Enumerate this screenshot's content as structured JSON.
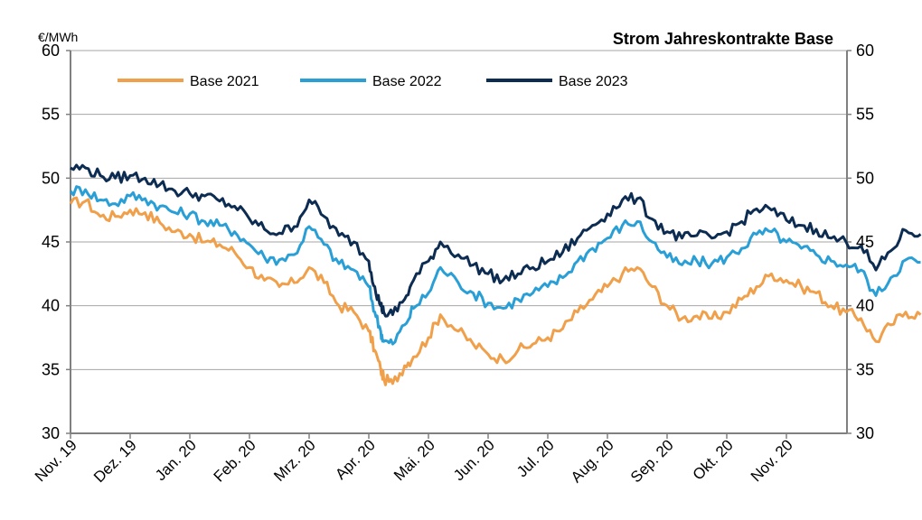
{
  "chart_data": {
    "type": "line",
    "title": "Strom Jahreskontrakte Base",
    "unit_label": "€/MWh",
    "ylim": [
      30,
      60
    ],
    "y_ticks": [
      "30",
      "35",
      "40",
      "45",
      "50",
      "55",
      "60"
    ],
    "x_tick_labels": [
      "Nov. 19",
      "Dez. 19",
      "Jan. 20",
      "Feb. 20",
      "Mrz. 20",
      "Apr. 20",
      "Mai. 20",
      "Jun. 20",
      "Jul. 20",
      "Aug. 20",
      "Sep. 20",
      "Okt. 20",
      "Nov. 20"
    ],
    "grid": "horizontal",
    "legend_position": "top-left",
    "x_description": "month index (0 = Nov. 19, 12 = Nov. 20)",
    "series": [
      {
        "name": "Base 2021",
        "color": "#f0a04b",
        "points": [
          [
            0,
            48.0
          ],
          [
            0.25,
            48.2
          ],
          [
            0.5,
            47.0
          ],
          [
            0.75,
            47.0
          ],
          [
            1.0,
            47.5
          ],
          [
            1.25,
            47.3
          ],
          [
            1.5,
            46.5
          ],
          [
            1.75,
            45.8
          ],
          [
            2.0,
            45.6
          ],
          [
            2.25,
            45.0
          ],
          [
            2.5,
            44.8
          ],
          [
            2.75,
            44.2
          ],
          [
            3.0,
            43.0
          ],
          [
            3.25,
            42.0
          ],
          [
            3.5,
            41.5
          ],
          [
            3.75,
            41.8
          ],
          [
            4.0,
            43.0
          ],
          [
            4.25,
            41.8
          ],
          [
            4.5,
            40.0
          ],
          [
            4.75,
            39.5
          ],
          [
            5.0,
            38.0
          ],
          [
            5.1,
            36.5
          ],
          [
            5.2,
            35.0
          ],
          [
            5.25,
            34.3
          ],
          [
            5.4,
            33.9
          ],
          [
            5.6,
            35.3
          ],
          [
            5.75,
            36.0
          ],
          [
            6.0,
            37.5
          ],
          [
            6.2,
            39.3
          ],
          [
            6.5,
            38.0
          ],
          [
            6.75,
            37.0
          ],
          [
            7.0,
            36.2
          ],
          [
            7.25,
            35.8
          ],
          [
            7.5,
            36.5
          ],
          [
            7.75,
            37.0
          ],
          [
            8.0,
            37.5
          ],
          [
            8.25,
            38.2
          ],
          [
            8.5,
            39.5
          ],
          [
            8.75,
            40.5
          ],
          [
            9.0,
            41.5
          ],
          [
            9.25,
            42.5
          ],
          [
            9.5,
            43.0
          ],
          [
            9.75,
            41.5
          ],
          [
            10.0,
            40.0
          ],
          [
            10.25,
            39.0
          ],
          [
            10.5,
            39.2
          ],
          [
            10.75,
            39.0
          ],
          [
            11.0,
            39.5
          ],
          [
            11.25,
            40.5
          ],
          [
            11.5,
            41.5
          ],
          [
            11.75,
            42.5
          ],
          [
            12.0,
            42.0
          ],
          [
            12.25,
            41.5
          ],
          [
            12.5,
            41.0
          ],
          [
            12.75,
            40.0
          ],
          [
            13.0,
            39.5
          ],
          [
            13.25,
            39.0
          ],
          [
            13.5,
            37.2
          ],
          [
            13.75,
            38.5
          ],
          [
            14.0,
            39.5
          ],
          [
            14.25,
            39.3
          ]
        ]
      },
      {
        "name": "Base 2022",
        "color": "#2a9fd6",
        "points": [
          [
            0,
            49.0
          ],
          [
            0.25,
            49.1
          ],
          [
            0.5,
            48.3
          ],
          [
            0.75,
            48.0
          ],
          [
            1.0,
            48.6
          ],
          [
            1.25,
            48.4
          ],
          [
            1.5,
            47.8
          ],
          [
            1.75,
            47.3
          ],
          [
            2.0,
            47.2
          ],
          [
            2.25,
            46.6
          ],
          [
            2.5,
            46.3
          ],
          [
            2.75,
            45.8
          ],
          [
            3.0,
            44.8
          ],
          [
            3.25,
            43.8
          ],
          [
            3.5,
            43.6
          ],
          [
            3.75,
            44.0
          ],
          [
            4.0,
            46.2
          ],
          [
            4.25,
            44.8
          ],
          [
            4.5,
            43.3
          ],
          [
            4.75,
            42.8
          ],
          [
            5.0,
            41.5
          ],
          [
            5.1,
            39.5
          ],
          [
            5.2,
            38.0
          ],
          [
            5.25,
            37.2
          ],
          [
            5.4,
            37.0
          ],
          [
            5.6,
            38.5
          ],
          [
            5.75,
            39.8
          ],
          [
            6.0,
            41.0
          ],
          [
            6.2,
            43.0
          ],
          [
            6.5,
            41.8
          ],
          [
            6.75,
            41.0
          ],
          [
            7.0,
            40.2
          ],
          [
            7.25,
            39.8
          ],
          [
            7.5,
            40.5
          ],
          [
            7.75,
            41.0
          ],
          [
            8.0,
            41.5
          ],
          [
            8.25,
            42.2
          ],
          [
            8.5,
            43.5
          ],
          [
            8.75,
            44.5
          ],
          [
            9.0,
            45.3
          ],
          [
            9.25,
            46.3
          ],
          [
            9.5,
            46.6
          ],
          [
            9.75,
            45.0
          ],
          [
            10.0,
            43.8
          ],
          [
            10.25,
            43.2
          ],
          [
            10.5,
            43.5
          ],
          [
            10.75,
            43.3
          ],
          [
            11.0,
            43.8
          ],
          [
            11.25,
            44.5
          ],
          [
            11.5,
            45.6
          ],
          [
            11.75,
            45.8
          ],
          [
            12.0,
            45.0
          ],
          [
            12.25,
            44.5
          ],
          [
            12.5,
            44.0
          ],
          [
            12.75,
            43.5
          ],
          [
            13.0,
            43.2
          ],
          [
            13.25,
            42.8
          ],
          [
            13.5,
            40.8
          ],
          [
            13.75,
            42.2
          ],
          [
            14.0,
            43.6
          ],
          [
            14.25,
            43.4
          ]
        ]
      },
      {
        "name": "Base 2023",
        "color": "#0d2c52",
        "points": [
          [
            0,
            50.8
          ],
          [
            0.25,
            50.8
          ],
          [
            0.5,
            50.2
          ],
          [
            0.75,
            50.0
          ],
          [
            1.0,
            50.2
          ],
          [
            1.25,
            50.0
          ],
          [
            1.5,
            49.5
          ],
          [
            1.75,
            49.0
          ],
          [
            2.0,
            48.8
          ],
          [
            2.25,
            48.6
          ],
          [
            2.5,
            48.2
          ],
          [
            2.75,
            47.8
          ],
          [
            3.0,
            46.8
          ],
          [
            3.25,
            46.0
          ],
          [
            3.5,
            45.7
          ],
          [
            3.75,
            46.2
          ],
          [
            4.0,
            48.3
          ],
          [
            4.25,
            47.0
          ],
          [
            4.5,
            45.5
          ],
          [
            4.75,
            45.0
          ],
          [
            5.0,
            43.5
          ],
          [
            5.1,
            41.5
          ],
          [
            5.2,
            40.0
          ],
          [
            5.25,
            39.5
          ],
          [
            5.4,
            39.3
          ],
          [
            5.6,
            40.5
          ],
          [
            5.75,
            42.0
          ],
          [
            6.0,
            43.5
          ],
          [
            6.2,
            45.0
          ],
          [
            6.5,
            44.0
          ],
          [
            6.75,
            43.2
          ],
          [
            7.0,
            42.5
          ],
          [
            7.25,
            42.0
          ],
          [
            7.5,
            42.5
          ],
          [
            7.75,
            43.0
          ],
          [
            8.0,
            43.5
          ],
          [
            8.25,
            44.2
          ],
          [
            8.5,
            45.3
          ],
          [
            8.75,
            46.3
          ],
          [
            9.0,
            47.2
          ],
          [
            9.25,
            48.3
          ],
          [
            9.5,
            48.4
          ],
          [
            9.75,
            46.8
          ],
          [
            10.0,
            45.8
          ],
          [
            10.25,
            45.3
          ],
          [
            10.5,
            45.5
          ],
          [
            10.75,
            45.3
          ],
          [
            11.0,
            45.8
          ],
          [
            11.25,
            46.6
          ],
          [
            11.5,
            47.6
          ],
          [
            11.75,
            47.5
          ],
          [
            12.0,
            46.7
          ],
          [
            12.25,
            46.3
          ],
          [
            12.5,
            46.0
          ],
          [
            12.75,
            45.3
          ],
          [
            13.0,
            45.0
          ],
          [
            13.25,
            44.7
          ],
          [
            13.5,
            42.8
          ],
          [
            13.75,
            44.3
          ],
          [
            14.0,
            45.9
          ],
          [
            14.25,
            45.6
          ]
        ]
      }
    ]
  }
}
